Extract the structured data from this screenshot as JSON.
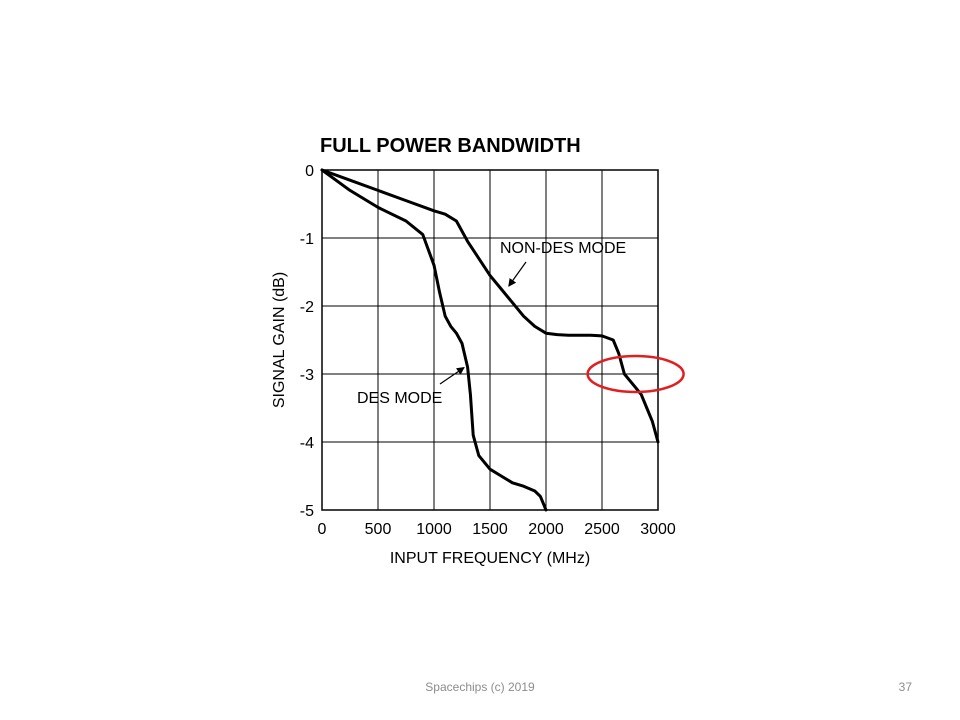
{
  "chart_data": {
    "type": "line",
    "title": "FULL POWER BANDWIDTH",
    "xlabel": "INPUT FREQUENCY (MHz)",
    "ylabel": "SIGNAL GAIN (dB)",
    "xlim": [
      0,
      3000
    ],
    "ylim": [
      -5,
      0
    ],
    "x_ticks": [
      "0",
      "500",
      "1000",
      "1500",
      "2000",
      "2500",
      "3000"
    ],
    "y_ticks": [
      "0",
      "-1",
      "-2",
      "-3",
      "-4",
      "-5"
    ],
    "grid": true,
    "series": [
      {
        "name": "NON-DES MODE",
        "x": [
          0,
          250,
          500,
          750,
          1000,
          1100,
          1200,
          1300,
          1400,
          1500,
          1600,
          1700,
          1800,
          1900,
          2000,
          2100,
          2200,
          2300,
          2400,
          2500,
          2600,
          2650,
          2700,
          2750,
          2800,
          2850,
          2900,
          2950,
          3000
        ],
        "y": [
          0,
          -0.15,
          -0.3,
          -0.45,
          -0.6,
          -0.65,
          -0.75,
          -1.05,
          -1.3,
          -1.55,
          -1.75,
          -1.95,
          -2.15,
          -2.3,
          -2.4,
          -2.42,
          -2.43,
          -2.43,
          -2.43,
          -2.44,
          -2.5,
          -2.7,
          -3.0,
          -3.1,
          -3.2,
          -3.3,
          -3.5,
          -3.7,
          -4.0
        ]
      },
      {
        "name": "DES MODE",
        "x": [
          0,
          250,
          500,
          750,
          900,
          1000,
          1050,
          1100,
          1150,
          1200,
          1250,
          1300,
          1325,
          1350,
          1400,
          1500,
          1600,
          1700,
          1800,
          1900,
          1950,
          2000
        ],
        "y": [
          0,
          -0.3,
          -0.55,
          -0.75,
          -0.95,
          -1.4,
          -1.8,
          -2.15,
          -2.3,
          -2.4,
          -2.55,
          -2.9,
          -3.3,
          -3.9,
          -4.2,
          -4.4,
          -4.5,
          -4.6,
          -4.65,
          -4.72,
          -4.8,
          -5.0
        ]
      }
    ],
    "annotations": [
      {
        "text": "NON-DES MODE",
        "points_to_x": 1650,
        "points_to_y": -1.75
      },
      {
        "text": "DES MODE",
        "points_to_x": 1250,
        "points_to_y": -2.95
      }
    ],
    "highlight": {
      "shape": "ellipse",
      "color": "#e02020",
      "center_x": 2800,
      "center_y": -3.0
    }
  },
  "footer": {
    "text": "Spacechips (c) 2019",
    "slide_number": "37"
  }
}
